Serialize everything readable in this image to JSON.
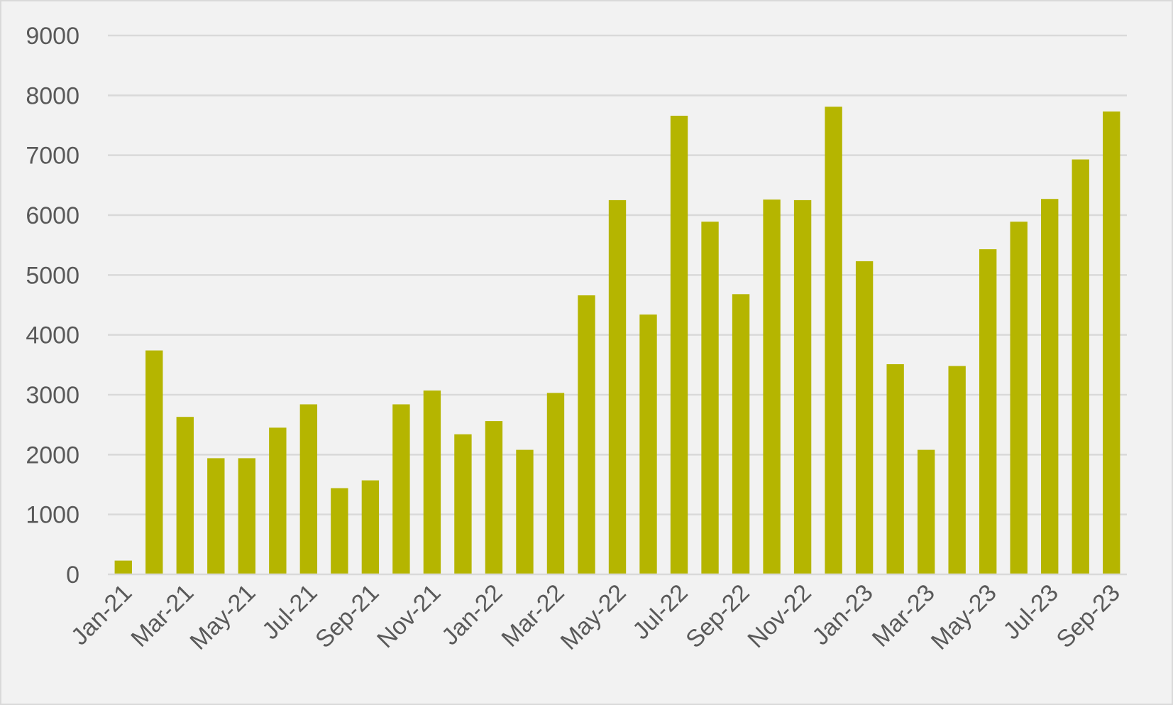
{
  "colors": {
    "background": "#f2f2f2",
    "bar": "#b5b500",
    "grid": "#d9d9d9",
    "text": "#595959",
    "frame": "#d9d9d9"
  },
  "chart_data": {
    "type": "bar",
    "title": "",
    "xlabel": "",
    "ylabel": "",
    "ylim": [
      0,
      9000
    ],
    "yticks": [
      0,
      1000,
      2000,
      3000,
      4000,
      5000,
      6000,
      7000,
      8000,
      9000
    ],
    "grid": true,
    "legend": "none",
    "categories": [
      "Jan-21",
      "Feb-21",
      "Mar-21",
      "Apr-21",
      "May-21",
      "Jun-21",
      "Jul-21",
      "Aug-21",
      "Sep-21",
      "Oct-21",
      "Nov-21",
      "Dec-21",
      "Jan-22",
      "Feb-22",
      "Mar-22",
      "Apr-22",
      "May-22",
      "Jun-22",
      "Jul-22",
      "Aug-22",
      "Sep-22",
      "Oct-22",
      "Nov-22",
      "Dec-22",
      "Jan-23",
      "Feb-23",
      "Mar-23",
      "Apr-23",
      "May-23",
      "Jun-23",
      "Jul-23",
      "Aug-23",
      "Sep-23"
    ],
    "tick_labels": [
      "Jan-21",
      "Mar-21",
      "May-21",
      "Jul-21",
      "Sep-21",
      "Nov-21",
      "Jan-22",
      "Mar-22",
      "May-22",
      "Jul-22",
      "Sep-22",
      "Nov-22",
      "Jan-23",
      "Mar-23",
      "May-23",
      "Jul-23",
      "Sep-23"
    ],
    "values": [
      230,
      3740,
      2630,
      1940,
      1940,
      2450,
      2840,
      1440,
      1570,
      2840,
      3070,
      2340,
      2560,
      2080,
      3030,
      4660,
      6250,
      4340,
      7660,
      5890,
      4680,
      6260,
      6250,
      7810,
      5230,
      3510,
      2080,
      3480,
      5430,
      5890,
      6270,
      6930,
      7730
    ]
  }
}
